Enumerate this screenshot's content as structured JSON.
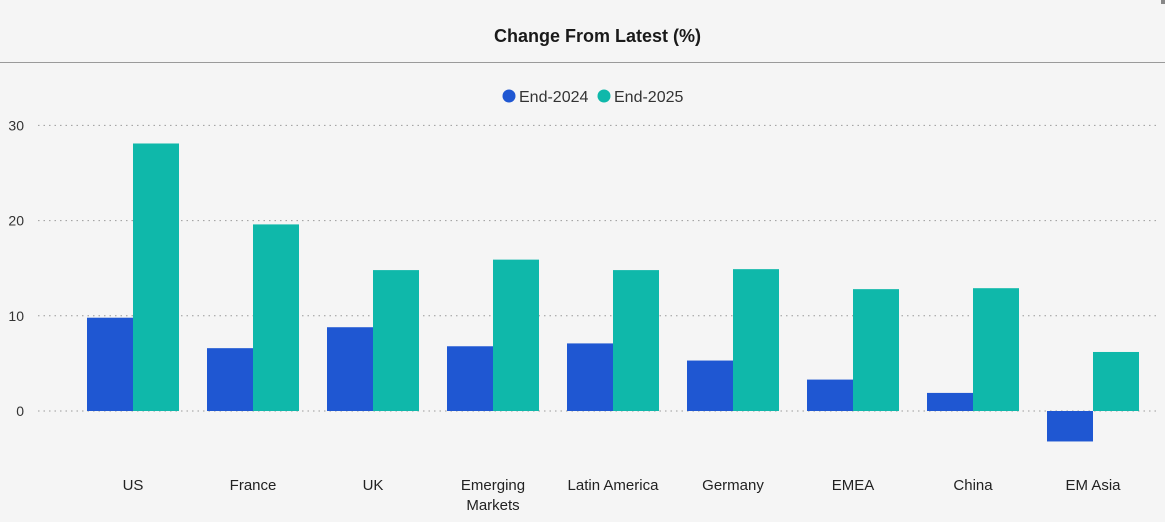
{
  "chart_data": {
    "type": "bar",
    "title": "Change From Latest (%)",
    "categories": [
      "US",
      "France",
      "UK",
      "Emerging Markets",
      "Latin America",
      "Germany",
      "EMEA",
      "China",
      "EM Asia"
    ],
    "series": [
      {
        "name": "End-2024",
        "values": [
          9.8,
          6.6,
          8.8,
          6.8,
          7.1,
          5.3,
          3.3,
          1.9,
          -3.2
        ]
      },
      {
        "name": "End-2025",
        "values": [
          28.1,
          19.6,
          14.8,
          15.9,
          14.8,
          14.9,
          12.8,
          12.9,
          6.2
        ]
      }
    ],
    "y_ticks": [
      0,
      10,
      20,
      30
    ],
    "ylim": [
      -5,
      32
    ],
    "xlabel": "",
    "ylabel": "",
    "legend_position": "top-center",
    "grid": true,
    "colors": {
      "End-2024": "#1f57d2",
      "End-2025": "#0fb8aa"
    }
  }
}
